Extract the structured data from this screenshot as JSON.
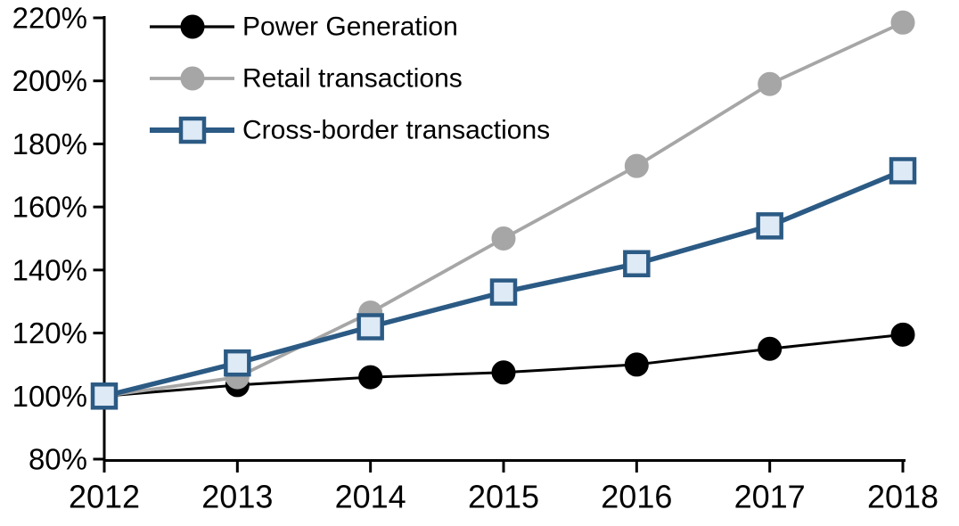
{
  "chart_data": {
    "type": "line",
    "title": "",
    "x_categories": [
      "2012",
      "2013",
      "2014",
      "2015",
      "2016",
      "2017",
      "2018"
    ],
    "y_axis": {
      "min": 80,
      "max": 220,
      "step": 20,
      "unit": "%",
      "tick_labels": [
        "80%",
        "100%",
        "120%",
        "140%",
        "160%",
        "180%",
        "200%",
        "220%"
      ]
    },
    "grid": "off",
    "legend_position": "top-left-inside",
    "background_color": "#FFFFFF",
    "axis_color": "#000000",
    "series": [
      {
        "name": "Power Generation",
        "color": "#000000",
        "marker": "circle",
        "marker_fill": "#000000",
        "values": [
          100,
          103.5,
          106,
          107.5,
          110,
          115,
          119.5
        ]
      },
      {
        "name": "Retail transactions",
        "color": "#A6A6A6",
        "marker": "circle",
        "marker_fill": "#A6A6A6",
        "values": [
          100,
          106,
          126.5,
          150,
          173,
          199,
          218.5
        ]
      },
      {
        "name": "Cross-border transactions",
        "color": "#2B5A84",
        "marker": "square",
        "marker_fill": "#DEEAF6",
        "values": [
          100,
          110.5,
          122,
          133,
          142,
          154,
          171.5
        ]
      }
    ]
  }
}
